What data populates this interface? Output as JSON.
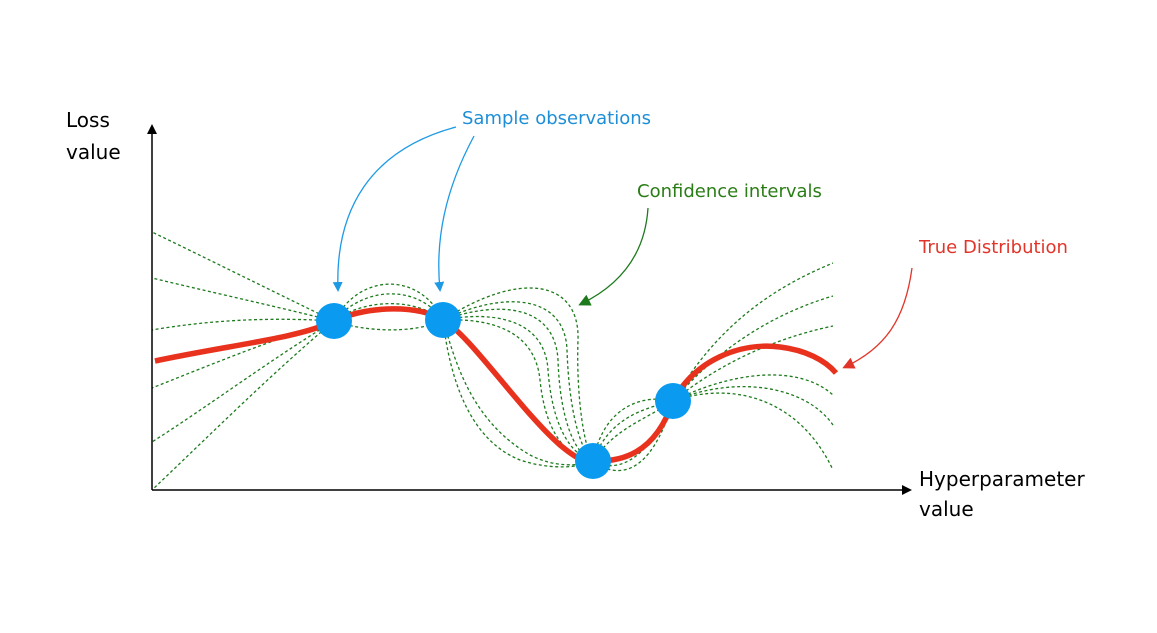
{
  "axes": {
    "y_label": [
      "Loss",
      "value"
    ],
    "x_label": [
      "Hyperparameter",
      "value"
    ]
  },
  "annotations": {
    "samples": "Sample observations",
    "confidence": "Confidence intervals",
    "true_dist": "True Distribution"
  },
  "colors": {
    "axis": "#000000",
    "true_curve": "#e8321e",
    "sample_point": "#0a9bf0",
    "confidence": "#1d7a1d",
    "samples_text": "#1e8fd6",
    "confidence_text": "#2a7d16",
    "true_text": "#e2352a"
  }
}
